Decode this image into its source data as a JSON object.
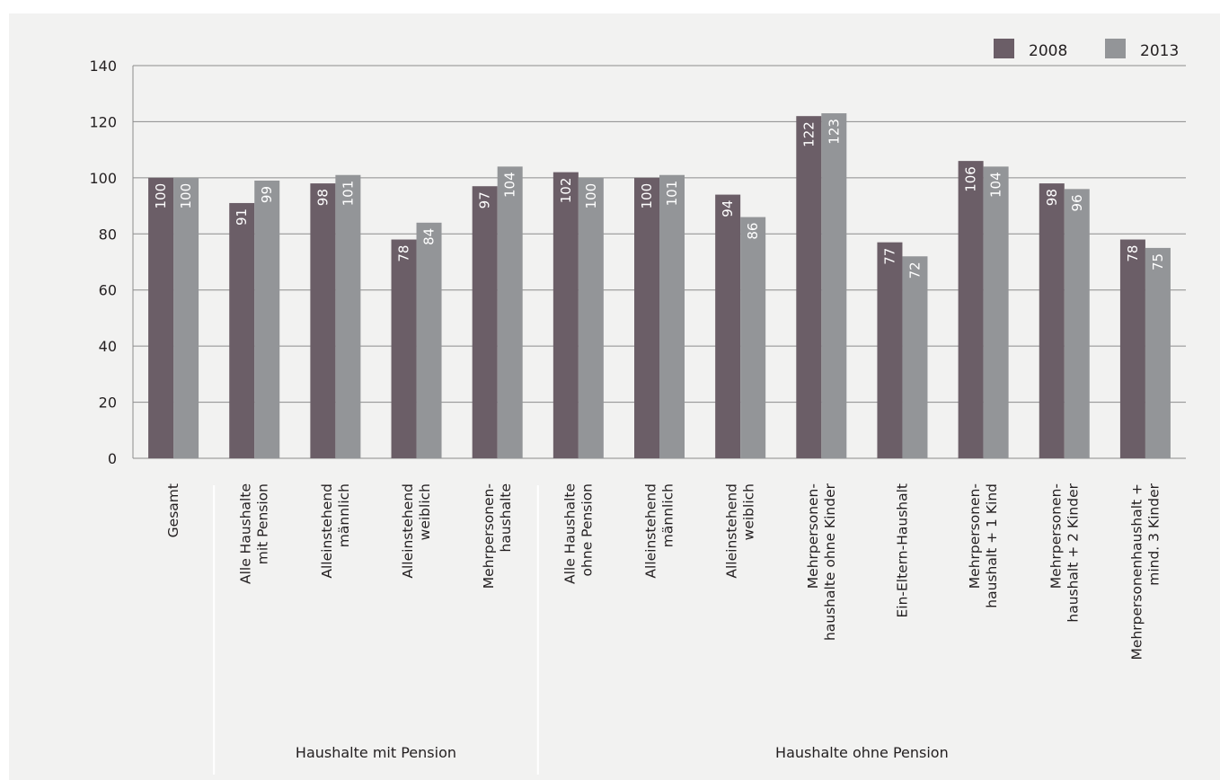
{
  "chart_data": {
    "type": "bar",
    "categories": [
      [
        "Gesamt"
      ],
      [
        "Alle Haushalte",
        "mit Pension"
      ],
      [
        "Alleinstehend",
        "männlich"
      ],
      [
        "Alleinstehend",
        "weiblich"
      ],
      [
        "Mehrpersonen-",
        "haushalte"
      ],
      [
        "Alle Haushalte",
        "ohne Pension"
      ],
      [
        "Alleinstehend",
        "männlich"
      ],
      [
        "Alleinstehend",
        "weiblich"
      ],
      [
        "Mehrpersonen-",
        "haushalte ohne Kinder"
      ],
      [
        "Ein-Eltern-Haushalt"
      ],
      [
        "Mehrpersonen-",
        "haushalt + 1 Kind"
      ],
      [
        "Mehrpersonen-",
        "haushalt + 2 Kinder"
      ],
      [
        "Mehrpersonenhaushalt +",
        "mind. 3 Kinder"
      ]
    ],
    "series": [
      {
        "name": "2008",
        "color": "#6b5e67",
        "values": [
          100,
          91,
          98,
          78,
          97,
          102,
          100,
          94,
          122,
          77,
          106,
          98,
          78
        ]
      },
      {
        "name": "2013",
        "color": "#939598",
        "values": [
          100,
          99,
          101,
          84,
          104,
          100,
          101,
          86,
          123,
          72,
          104,
          96,
          75
        ]
      }
    ],
    "groups": [
      {
        "label": "Haushalte mit Pension",
        "from": 1,
        "to": 4
      },
      {
        "label": "Haushalte ohne Pension",
        "from": 5,
        "to": 12
      }
    ],
    "ylim": [
      0,
      140
    ],
    "yticks": [
      0,
      20,
      40,
      60,
      80,
      100,
      120,
      140
    ],
    "grid": true,
    "legend": "top-right",
    "title": "",
    "xlabel": "",
    "ylabel": ""
  }
}
